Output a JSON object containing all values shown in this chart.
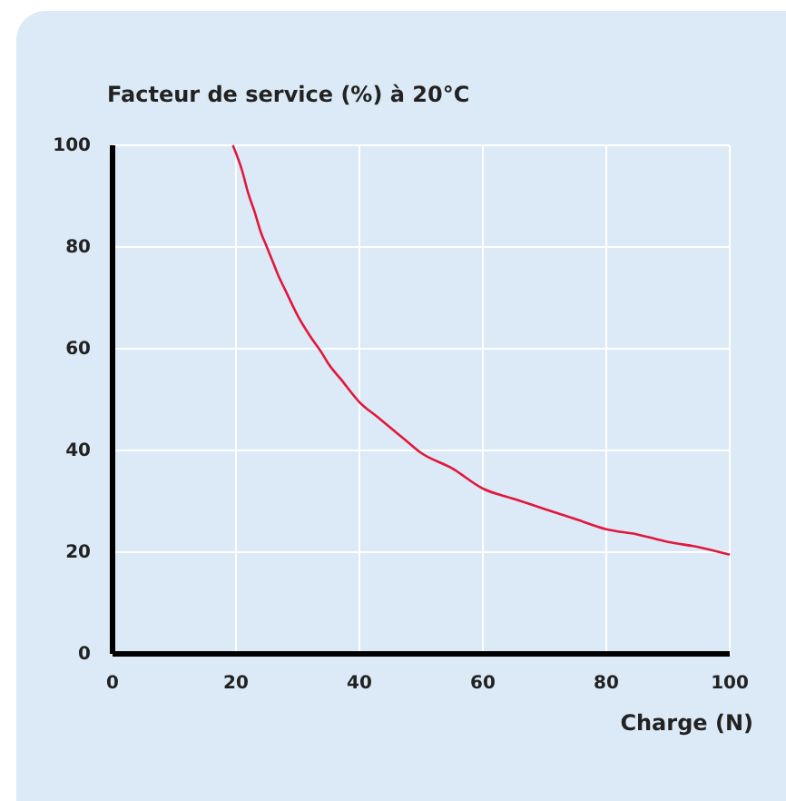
{
  "chart_data": {
    "type": "line",
    "title": "Facteur de service (%) à 20°C",
    "xlabel": "Charge (N)",
    "x": [
      19.5,
      21,
      22,
      23,
      24,
      25,
      26,
      27,
      28,
      30,
      32,
      34,
      35,
      37,
      40,
      43,
      45,
      47,
      50,
      55,
      60,
      65,
      70,
      75,
      80,
      85,
      90,
      95,
      100
    ],
    "series": [
      {
        "color": "#e2173b",
        "values": [
          100,
          95,
          90.5,
          87,
          83,
          80,
          77,
          74,
          71.5,
          66.5,
          62.5,
          59,
          57,
          54,
          49.5,
          46.5,
          44.5,
          42.5,
          39.5,
          36.5,
          32.5,
          30.5,
          28.5,
          26.5,
          24.5,
          23.5,
          22,
          21,
          19.5
        ]
      }
    ],
    "xlim": [
      0,
      100
    ],
    "xticks": [
      0,
      20,
      40,
      60,
      80,
      100
    ],
    "ylim": [
      0,
      100
    ],
    "yticks": [
      0,
      20,
      40,
      60,
      80,
      100
    ],
    "grid": true,
    "marker": "none",
    "line_style": "solid"
  }
}
